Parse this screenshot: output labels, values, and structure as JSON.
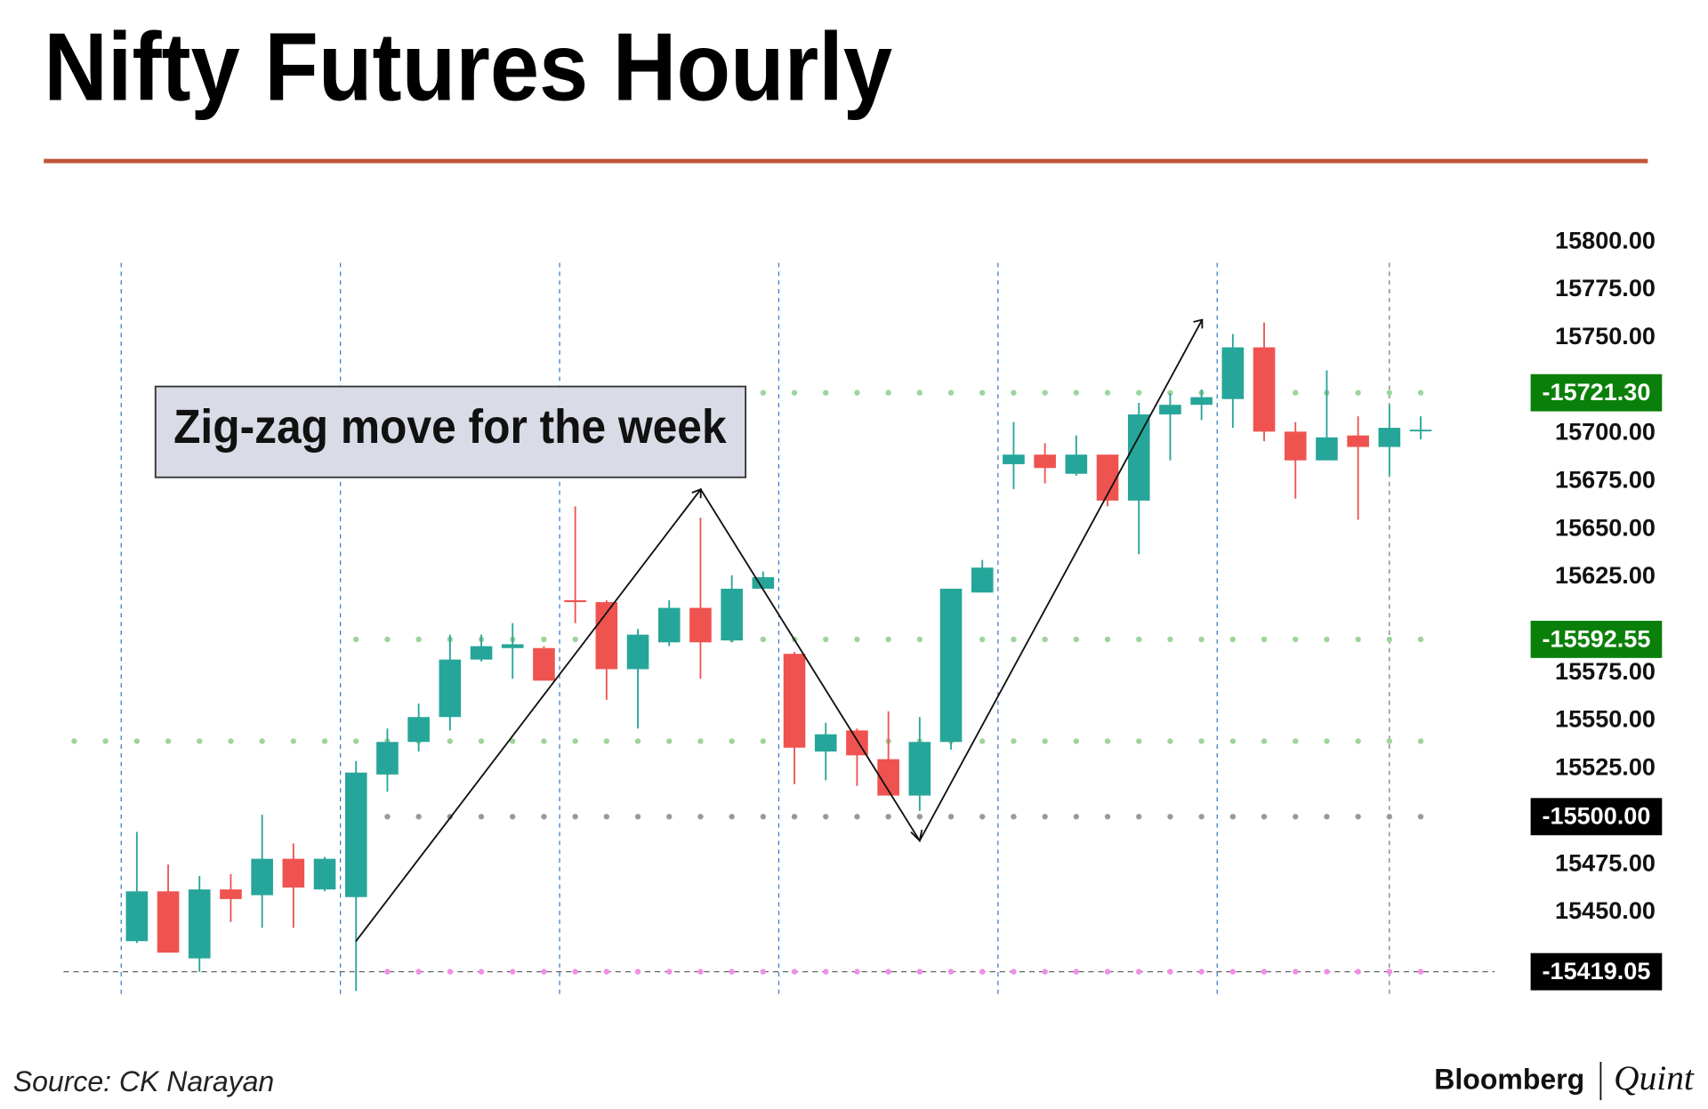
{
  "chart_data": {
    "type": "candlestick",
    "title": "Nifty Futures Hourly",
    "annotation": "Zig-zag move for the week",
    "open": [
      15435,
      15461,
      15426,
      15462,
      15459,
      15478,
      15462,
      15458,
      15522,
      15539,
      15552,
      15582,
      15588,
      15588,
      15613,
      15612,
      15577,
      15591,
      15609,
      15592,
      15619,
      15585,
      15534,
      15545,
      15530,
      15511,
      15539,
      15617,
      15684,
      15689,
      15679,
      15689,
      15665,
      15710,
      15715,
      15718,
      15745,
      15701,
      15686,
      15699,
      15693,
      15702
    ],
    "high": [
      15492,
      15475,
      15469,
      15470,
      15501,
      15486,
      15479,
      15529,
      15546,
      15559,
      15595,
      15595,
      15601,
      15589,
      15662,
      15613,
      15598,
      15613,
      15656,
      15626,
      15628,
      15586,
      15549,
      15546,
      15555,
      15552,
      15619,
      15634,
      15706,
      15695,
      15699,
      15689,
      15716,
      15721,
      15723,
      15752,
      15758,
      15706,
      15733,
      15709,
      15715,
      15709
    ],
    "low": [
      15434,
      15429,
      15419,
      15445,
      15442,
      15442,
      15461,
      15409,
      15513,
      15534,
      15545,
      15581,
      15572,
      15571,
      15601,
      15561,
      15546,
      15589,
      15572,
      15591,
      15619,
      15517,
      15519,
      15516,
      15511,
      15503,
      15535,
      15617,
      15671,
      15674,
      15678,
      15662,
      15637,
      15686,
      15707,
      15703,
      15696,
      15666,
      15686,
      15655,
      15678,
      15697
    ],
    "close": [
      15461,
      15429,
      15462,
      15457,
      15478,
      15463,
      15478,
      15523,
      15539,
      15552,
      15582,
      15589,
      15590,
      15571,
      15612,
      15577,
      15595,
      15609,
      15591,
      15619,
      15625,
      15536,
      15543,
      15532,
      15511,
      15539,
      15619,
      15630,
      15689,
      15682,
      15689,
      15665,
      15710,
      15715,
      15719,
      15745,
      15701,
      15686,
      15698,
      15693,
      15703,
      15702
    ],
    "up_color": "#26a69a",
    "down_color": "#ef5350",
    "ylim": [
      15400,
      15810
    ],
    "yticks": [
      {
        "value": 15800,
        "label": "15800.00"
      },
      {
        "value": 15775,
        "label": "15775.00"
      },
      {
        "value": 15750,
        "label": "15750.00"
      },
      {
        "value": 15700,
        "label": "15700.00"
      },
      {
        "value": 15675,
        "label": "15675.00"
      },
      {
        "value": 15650,
        "label": "15650.00"
      },
      {
        "value": 15625,
        "label": "15625.00"
      },
      {
        "value": 15575,
        "label": "15575.00"
      },
      {
        "value": 15550,
        "label": "15550.00"
      },
      {
        "value": 15525,
        "label": "15525.00"
      },
      {
        "value": 15475,
        "label": "15475.00"
      },
      {
        "value": 15450,
        "label": "15450.00"
      }
    ],
    "levels": [
      {
        "value": 15721.3,
        "label": "-15721.30",
        "color": "#9fd49a",
        "box_color": "#0a800a"
      },
      {
        "value": 15592.55,
        "label": "-15592.55",
        "color": "#9fd49a",
        "box_color": "#0a800a"
      },
      {
        "value": 15539.4,
        "color": "#9fd49a"
      },
      {
        "value": 15500,
        "label": "-15500.00",
        "color": "#999999",
        "box_color": "#000000"
      },
      {
        "value": 15419.05,
        "label": "-15419.05",
        "color": "#f08ee8",
        "box_color": "#000000"
      }
    ]
  },
  "footer": {
    "source": "Source: CK Narayan",
    "brand": "Bloomberg",
    "brand2": "Quint"
  }
}
